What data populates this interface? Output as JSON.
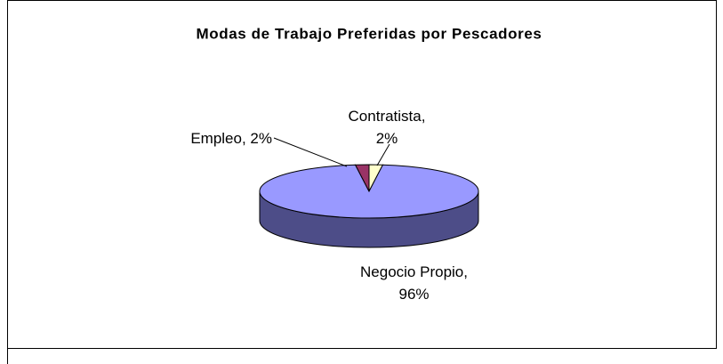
{
  "chart_data": {
    "type": "pie3d",
    "title": "Modas de Trabajo Preferidas por Pescadores",
    "values": [
      2,
      96,
      2
    ],
    "value_labels": [
      "Contratista, 2%",
      "Negocio Propio, 96%",
      "Empleo, 2%"
    ],
    "colors": [
      "#ffffcc",
      "#9999ff",
      "#993366"
    ],
    "side_colors": [
      "#aaaa88",
      "#4d4d88",
      "#662244"
    ]
  }
}
